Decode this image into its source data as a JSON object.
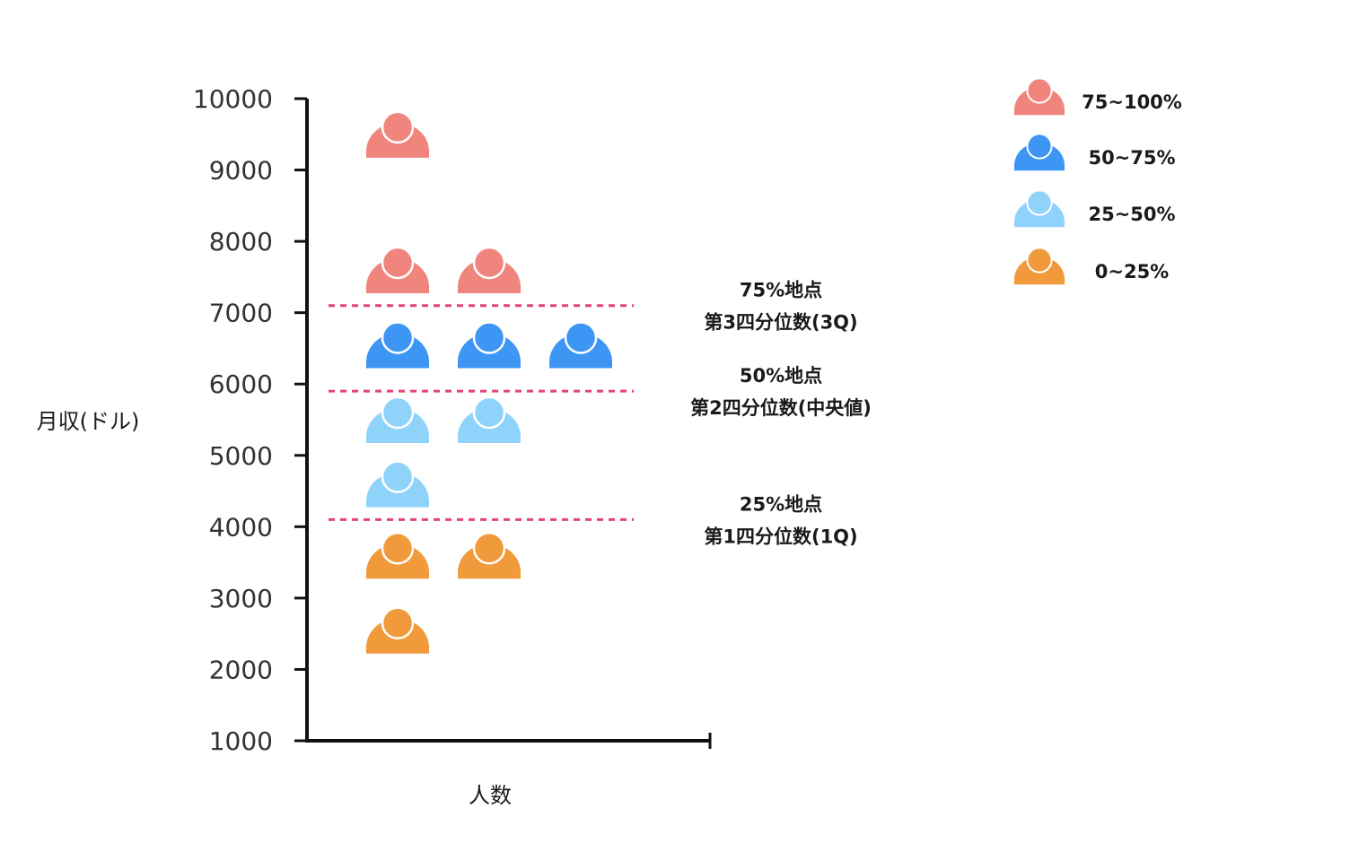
{
  "chart_data": {
    "type": "scatter",
    "ylabel": "月収(ドル)",
    "xlabel": "人数",
    "ylim": [
      1000,
      10000
    ],
    "yticks": [
      "10000",
      "9000",
      "8000",
      "7000",
      "6000",
      "5000",
      "4000",
      "3000",
      "2000",
      "1000"
    ],
    "series": [
      {
        "name": "75~100%",
        "color": "#f0857d",
        "points": [
          {
            "x": 1,
            "y": 9600
          },
          {
            "x": 1,
            "y": 7700
          },
          {
            "x": 2,
            "y": 7700
          }
        ]
      },
      {
        "name": "50~75%",
        "color": "#3d95f4",
        "points": [
          {
            "x": 1,
            "y": 6650
          },
          {
            "x": 2,
            "y": 6650
          },
          {
            "x": 3,
            "y": 6650
          }
        ]
      },
      {
        "name": "25~50%",
        "color": "#8fd3fb",
        "points": [
          {
            "x": 1,
            "y": 5600
          },
          {
            "x": 2,
            "y": 5600
          },
          {
            "x": 1,
            "y": 4700
          }
        ]
      },
      {
        "name": "0~25%",
        "color": "#f19a3b",
        "points": [
          {
            "x": 1,
            "y": 3700
          },
          {
            "x": 2,
            "y": 3700
          },
          {
            "x": 1,
            "y": 2650
          }
        ]
      }
    ],
    "reference_lines": [
      {
        "y": 7100,
        "label_line1": "75%地点",
        "label_line2": "第3四分位数(3Q)"
      },
      {
        "y": 5900,
        "label_line1": "50%地点",
        "label_line2": "第2四分位数(中央値)"
      },
      {
        "y": 4100,
        "label_line1": "25%地点",
        "label_line2": "第1四分位数(1Q)"
      }
    ],
    "reference_line_color": "#e0456f",
    "axis_color": "#111111",
    "grid": false,
    "legend_position": "top-right"
  }
}
